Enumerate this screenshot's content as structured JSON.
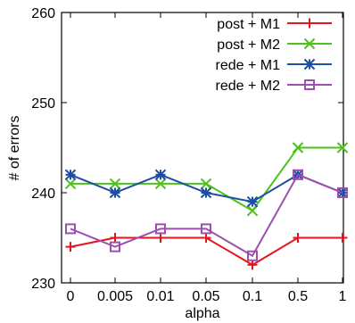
{
  "chart_data": {
    "type": "line",
    "title": "",
    "xlabel": "alpha",
    "ylabel": "# of errors",
    "categories": [
      "0",
      "0.005",
      "0.01",
      "0.05",
      "0.1",
      "0.5",
      "1"
    ],
    "ylim": [
      230,
      260
    ],
    "yticks": [
      230,
      240,
      250,
      260
    ],
    "grid": false,
    "legend_position": "top-right",
    "series": [
      {
        "name": "post + M1",
        "color": "#e8141c",
        "marker": "plus",
        "values": [
          234,
          235,
          235,
          235,
          232,
          235,
          235
        ]
      },
      {
        "name": "post + M2",
        "color": "#4cc31c",
        "marker": "x",
        "values": [
          241,
          241,
          241,
          241,
          238,
          245,
          245
        ]
      },
      {
        "name": "rede + M1",
        "color": "#1c4fa3",
        "marker": "star",
        "values": [
          242,
          240,
          242,
          240,
          239,
          242,
          240
        ]
      },
      {
        "name": "rede + M2",
        "color": "#9c4fb0",
        "marker": "square",
        "values": [
          236,
          234,
          236,
          236,
          233,
          242,
          240
        ]
      }
    ]
  }
}
